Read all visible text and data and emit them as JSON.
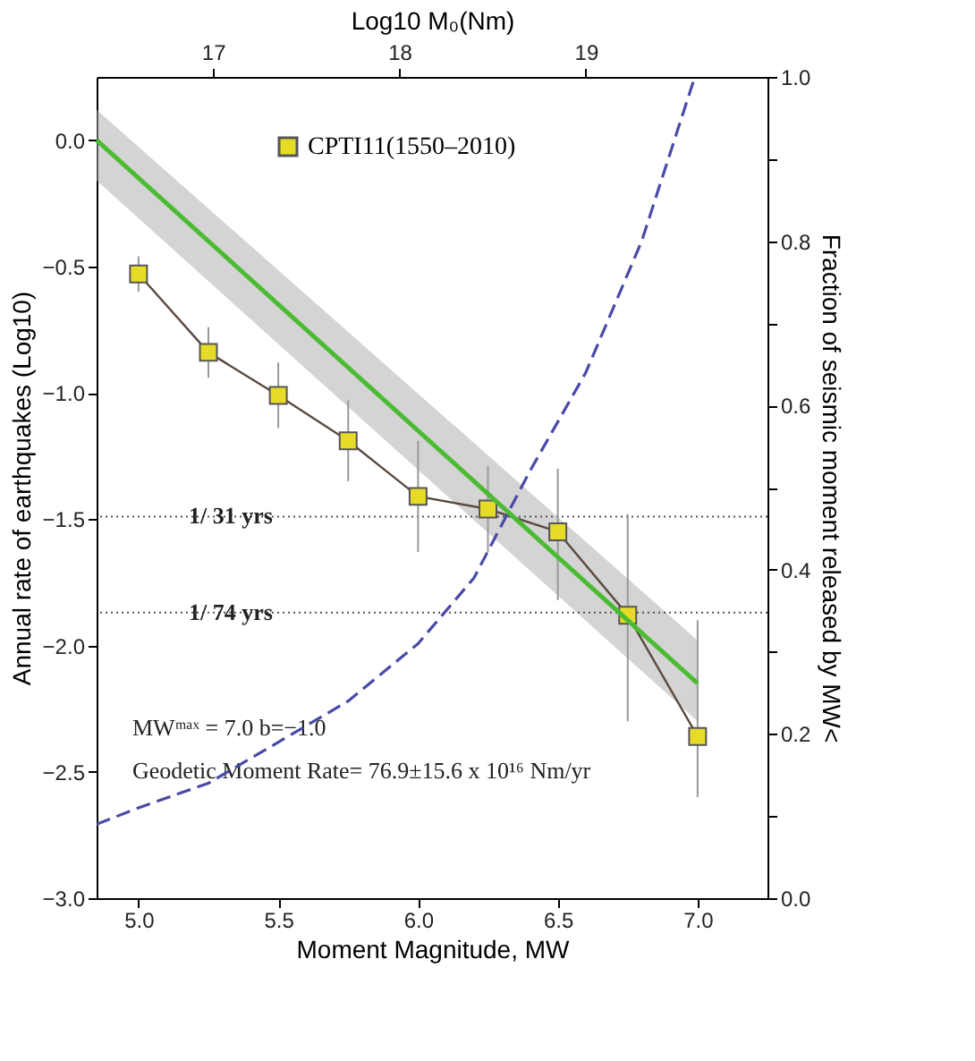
{
  "chart_data": {
    "type": "line",
    "xlabel": "Moment Magnitude, MW",
    "ylabel": "Annual rate of earthquakes (Log10)",
    "y2label": "Fraction of seismic moment released by MW<",
    "x2label": "Log10 M₀(Nm)",
    "xlim": [
      4.85,
      7.25
    ],
    "xticks": [
      {
        "value": 5.0,
        "label": "5.0"
      },
      {
        "value": 5.5,
        "label": "5.5"
      },
      {
        "value": 6.0,
        "label": "6.0"
      },
      {
        "value": 6.5,
        "label": "6.5"
      },
      {
        "value": 7.0,
        "label": "7.0"
      }
    ],
    "ylim": [
      -3.0,
      0.25
    ],
    "yticks": [
      {
        "value": -3.0,
        "label": "−3.0"
      },
      {
        "value": -2.5,
        "label": "−2.5"
      },
      {
        "value": -2.0,
        "label": "−2.0"
      },
      {
        "value": -1.5,
        "label": "−1.5"
      },
      {
        "value": -1.0,
        "label": "−1.0"
      },
      {
        "value": -0.5,
        "label": "−0.5"
      },
      {
        "value": 0.0,
        "label": "0.0"
      }
    ],
    "y2lim": [
      0.0,
      1.0
    ],
    "y2ticks": [
      {
        "value": 0.0,
        "label": "0.0"
      },
      {
        "value": 0.1,
        "label": null
      },
      {
        "value": 0.2,
        "label": "0.2"
      },
      {
        "value": 0.3,
        "label": null
      },
      {
        "value": 0.4,
        "label": "0.4"
      },
      {
        "value": 0.5,
        "label": null
      },
      {
        "value": 0.6,
        "label": "0.6"
      },
      {
        "value": 0.7,
        "label": null
      },
      {
        "value": 0.8,
        "label": "0.8"
      },
      {
        "value": 0.9,
        "label": null
      },
      {
        "value": 1.0,
        "label": "1.0"
      }
    ],
    "x2lim": [
      16.375,
      19.975
    ],
    "x2ticks": [
      {
        "value": 17,
        "label": "17"
      },
      {
        "value": 18,
        "label": "18"
      },
      {
        "value": 19,
        "label": "19"
      }
    ],
    "legend": "top",
    "grid": false,
    "series": [
      {
        "name": "CPTI11(1550–2010)",
        "type": "line",
        "marker": "square",
        "color": "#e6dc28",
        "x": [
          5.0,
          5.25,
          5.5,
          5.75,
          6.0,
          6.25,
          6.5,
          6.75,
          7.0
        ],
        "values": [
          -0.53,
          -0.84,
          -1.01,
          -1.19,
          -1.41,
          -1.46,
          -1.55,
          -1.88,
          -2.36
        ],
        "errors": [
          0.07,
          0.1,
          0.13,
          0.16,
          0.22,
          0.17,
          [
            -1.82,
            -1.3
          ],
          [
            -2.3,
            -1.48
          ],
          [
            -2.6,
            -1.9
          ]
        ]
      },
      {
        "type": "line",
        "color": "#4cbb34",
        "line_style": "solid",
        "x": [
          4.85,
          7.0
        ],
        "values": [
          0.0,
          -2.15
        ],
        "lower": [
          -0.16,
          -2.3
        ],
        "upper": [
          0.12,
          -1.98
        ]
      },
      {
        "type": "line",
        "axis": "y2",
        "color": "#4a4aa8",
        "line_style": "dashed",
        "x": [
          4.85,
          5.0,
          5.25,
          5.5,
          5.75,
          6.0,
          6.2,
          6.4,
          6.6,
          6.8,
          6.99
        ],
        "values": [
          0.09,
          0.11,
          0.14,
          0.19,
          0.24,
          0.31,
          0.39,
          0.52,
          0.64,
          0.8,
          1.0
        ]
      }
    ],
    "ref_lines": [
      {
        "axis": "y",
        "value": -1.49,
        "label": "1/ 31 yrs",
        "line_style": "dotted",
        "color": "#555555"
      },
      {
        "axis": "y",
        "value": -1.87,
        "label": "1/ 74 yrs",
        "line_style": "dotted",
        "color": "#555555"
      }
    ],
    "annotations": [
      "MWᵐᵃˣ = 7.0 b=−1.0",
      "Geodetic Moment Rate= 76.9±15.6 x 10¹⁶ Nm/yr"
    ]
  }
}
